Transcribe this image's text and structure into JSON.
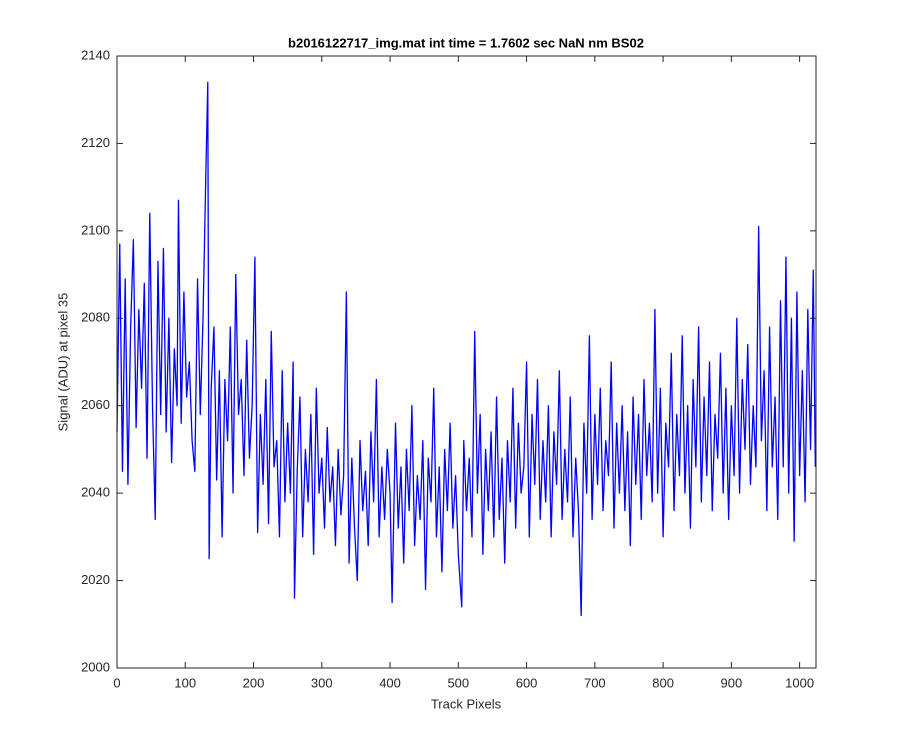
{
  "chart_data": {
    "type": "line",
    "title": "b2016122717_img.mat int time = 1.7602 sec  NaN nm BS02",
    "xlabel": "Track Pixels",
    "ylabel": "Signal (ADU) at pixel 35",
    "xlim": [
      0,
      1024
    ],
    "ylim": [
      2000,
      2140
    ],
    "xticks": [
      0,
      100,
      200,
      300,
      400,
      500,
      600,
      700,
      800,
      900,
      1000
    ],
    "yticks": [
      2000,
      2020,
      2040,
      2060,
      2080,
      2100,
      2120,
      2140
    ],
    "grid": false,
    "x": [
      0,
      4,
      8,
      12,
      16,
      20,
      24,
      28,
      32,
      36,
      40,
      44,
      48,
      52,
      56,
      60,
      64,
      68,
      72,
      76,
      80,
      84,
      88,
      90,
      94,
      98,
      102,
      106,
      110,
      114,
      118,
      122,
      126,
      130,
      133,
      135,
      138,
      142,
      146,
      150,
      154,
      158,
      162,
      166,
      170,
      174,
      178,
      182,
      186,
      190,
      194,
      198,
      202,
      206,
      210,
      214,
      218,
      222,
      226,
      230,
      234,
      238,
      242,
      246,
      250,
      254,
      258,
      260,
      264,
      268,
      272,
      276,
      280,
      284,
      288,
      292,
      296,
      300,
      304,
      308,
      312,
      316,
      320,
      324,
      328,
      332,
      336,
      340,
      344,
      348,
      352,
      356,
      360,
      364,
      368,
      372,
      376,
      380,
      384,
      388,
      392,
      396,
      400,
      403,
      408,
      412,
      416,
      420,
      424,
      428,
      432,
      436,
      440,
      444,
      448,
      452,
      456,
      460,
      464,
      468,
      472,
      476,
      480,
      484,
      488,
      492,
      496,
      500,
      505,
      508,
      512,
      516,
      520,
      524,
      528,
      532,
      536,
      540,
      544,
      548,
      552,
      556,
      560,
      564,
      568,
      572,
      576,
      580,
      584,
      588,
      592,
      596,
      600,
      604,
      608,
      612,
      616,
      620,
      624,
      628,
      632,
      636,
      640,
      644,
      648,
      652,
      656,
      660,
      664,
      668,
      672,
      676,
      680,
      684,
      688,
      692,
      696,
      700,
      704,
      708,
      712,
      716,
      720,
      724,
      728,
      732,
      736,
      740,
      744,
      748,
      752,
      756,
      760,
      764,
      768,
      772,
      776,
      780,
      784,
      788,
      792,
      796,
      800,
      804,
      808,
      812,
      816,
      820,
      824,
      828,
      832,
      836,
      840,
      844,
      848,
      852,
      856,
      860,
      864,
      868,
      872,
      876,
      880,
      884,
      888,
      892,
      896,
      900,
      904,
      908,
      912,
      916,
      920,
      924,
      928,
      932,
      936,
      940,
      944,
      948,
      952,
      956,
      960,
      964,
      968,
      972,
      976,
      980,
      984,
      988,
      992,
      996,
      1000,
      1004,
      1008,
      1012,
      1016,
      1020,
      1023
    ],
    "series": [
      {
        "color": "#0000ff",
        "values": [
          2054,
          2097,
          2045,
          2089,
          2042,
          2078,
          2098,
          2055,
          2082,
          2064,
          2088,
          2048,
          2104,
          2060,
          2034,
          2093,
          2058,
          2096,
          2054,
          2080,
          2047,
          2073,
          2060,
          2107,
          2056,
          2086,
          2062,
          2070,
          2052,
          2045,
          2089,
          2058,
          2080,
          2112,
          2134,
          2025,
          2064,
          2078,
          2043,
          2068,
          2030,
          2066,
          2052,
          2078,
          2040,
          2090,
          2058,
          2066,
          2044,
          2075,
          2048,
          2060,
          2094,
          2031,
          2058,
          2042,
          2066,
          2033,
          2077,
          2046,
          2052,
          2030,
          2068,
          2038,
          2056,
          2040,
          2070,
          2016,
          2045,
          2062,
          2030,
          2050,
          2038,
          2058,
          2026,
          2064,
          2040,
          2048,
          2032,
          2055,
          2038,
          2046,
          2028,
          2050,
          2035,
          2044,
          2086,
          2024,
          2048,
          2032,
          2020,
          2052,
          2036,
          2045,
          2028,
          2054,
          2038,
          2066,
          2030,
          2046,
          2034,
          2050,
          2040,
          2015,
          2056,
          2032,
          2046,
          2024,
          2050,
          2036,
          2060,
          2028,
          2044,
          2034,
          2052,
          2018,
          2048,
          2038,
          2064,
          2030,
          2046,
          2022,
          2050,
          2036,
          2056,
          2032,
          2044,
          2026,
          2014,
          2052,
          2036,
          2048,
          2030,
          2077,
          2040,
          2058,
          2026,
          2050,
          2036,
          2054,
          2030,
          2062,
          2034,
          2048,
          2024,
          2052,
          2038,
          2064,
          2032,
          2056,
          2040,
          2046,
          2070,
          2030,
          2058,
          2042,
          2066,
          2034,
          2052,
          2038,
          2060,
          2030,
          2054,
          2042,
          2068,
          2034,
          2050,
          2038,
          2062,
          2030,
          2048,
          2036,
          2012,
          2056,
          2040,
          2076,
          2034,
          2058,
          2042,
          2064,
          2036,
          2052,
          2044,
          2070,
          2032,
          2056,
          2040,
          2060,
          2036,
          2054,
          2028,
          2062,
          2042,
          2058,
          2034,
          2066,
          2044,
          2056,
          2038,
          2082,
          2040,
          2064,
          2030,
          2056,
          2046,
          2072,
          2036,
          2058,
          2044,
          2076,
          2040,
          2060,
          2032,
          2066,
          2046,
          2078,
          2038,
          2062,
          2044,
          2070,
          2036,
          2058,
          2048,
          2072,
          2040,
          2064,
          2034,
          2060,
          2044,
          2080,
          2040,
          2066,
          2050,
          2074,
          2042,
          2060,
          2046,
          2101,
          2052,
          2068,
          2036,
          2078,
          2046,
          2062,
          2034,
          2084,
          2046,
          2094,
          2040,
          2080,
          2029,
          2086,
          2044,
          2068,
          2038,
          2082,
          2050,
          2091,
          2046
        ]
      }
    ]
  }
}
